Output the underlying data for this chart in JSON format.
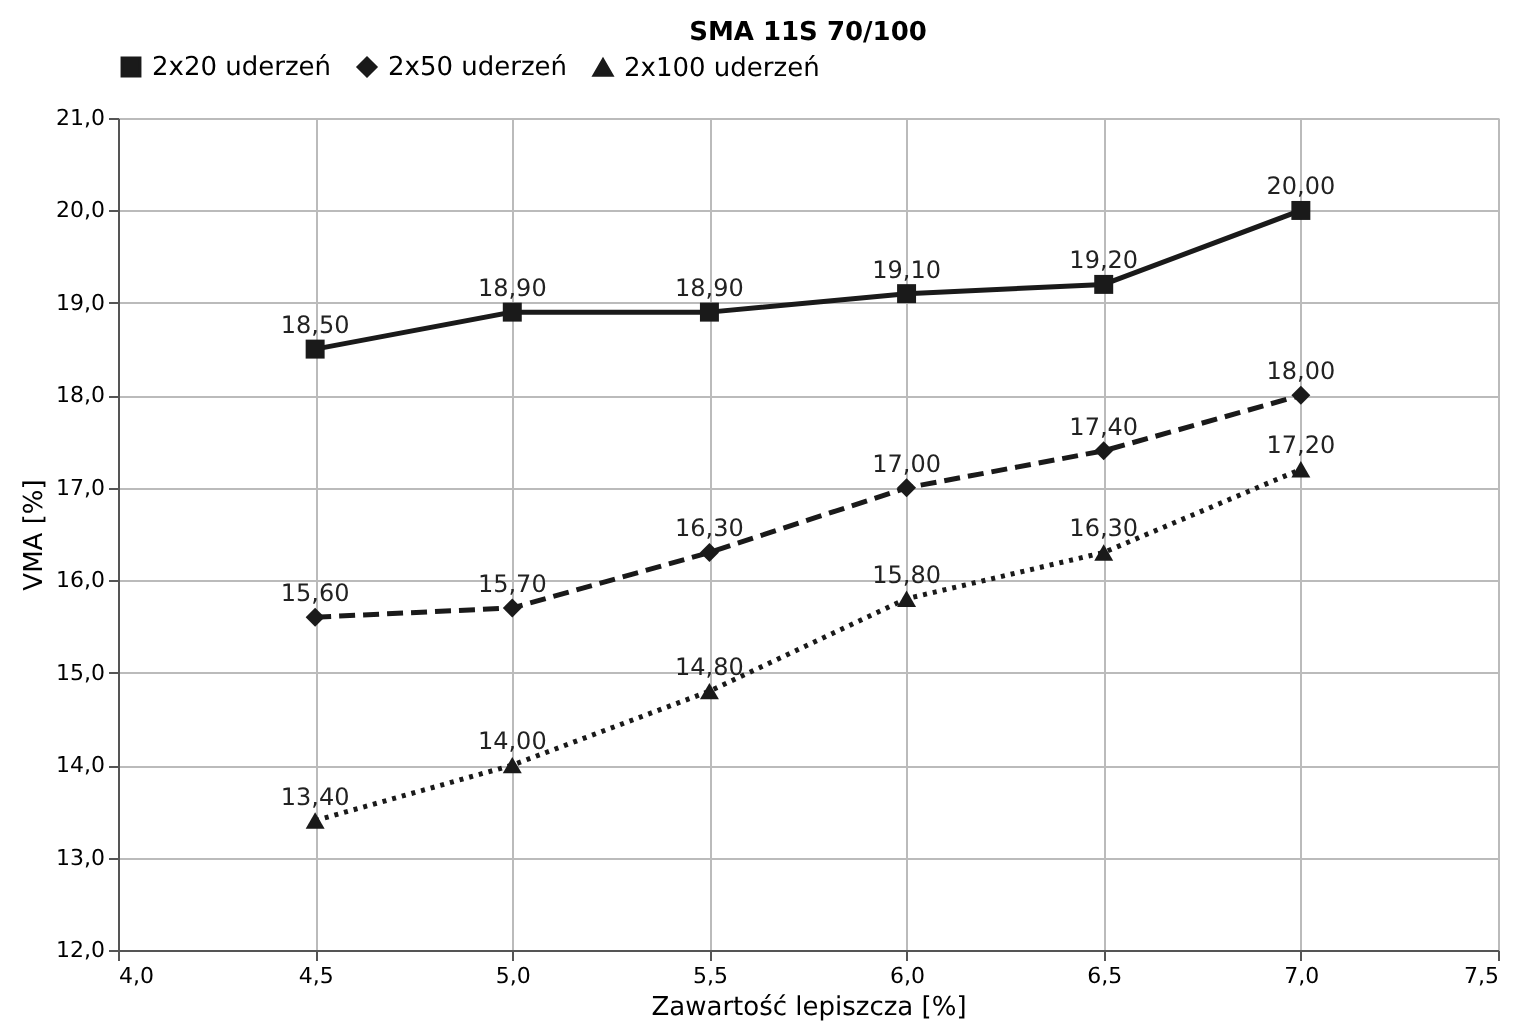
{
  "chart_data": {
    "type": "line",
    "title": "SMA 11S 70/100",
    "xlabel": "Zawartość lepiszcza [%]",
    "ylabel": "VMA [%]",
    "x": [
      4.5,
      5.0,
      5.5,
      6.0,
      6.5,
      7.0
    ],
    "xlim": [
      4.0,
      7.5
    ],
    "xticks": [
      {
        "value": 4.0,
        "label": "4,0"
      },
      {
        "value": 4.5,
        "label": "4,5"
      },
      {
        "value": 5.0,
        "label": "5,0"
      },
      {
        "value": 5.5,
        "label": "5,5"
      },
      {
        "value": 6.0,
        "label": "6,0"
      },
      {
        "value": 6.5,
        "label": "6,5"
      },
      {
        "value": 7.0,
        "label": "7,0"
      },
      {
        "value": 7.5,
        "label": "7,5"
      }
    ],
    "ylim": [
      12.0,
      21.0
    ],
    "yticks": [
      {
        "value": 12.0,
        "label": "12,0"
      },
      {
        "value": 13.0,
        "label": "13,0"
      },
      {
        "value": 14.0,
        "label": "14,0"
      },
      {
        "value": 15.0,
        "label": "15,0"
      },
      {
        "value": 16.0,
        "label": "16,0"
      },
      {
        "value": 17.0,
        "label": "17,0"
      },
      {
        "value": 18.0,
        "label": "18,0"
      },
      {
        "value": 19.0,
        "label": "19,0"
      },
      {
        "value": 20.0,
        "label": "20,0"
      },
      {
        "value": 21.0,
        "label": "21,0"
      }
    ],
    "grid": true,
    "legend": "top",
    "series": [
      {
        "name": "2x20 uderzeń",
        "color": "#1a1a1a",
        "marker": "square",
        "line_style": "solid",
        "values": [
          18.5,
          18.9,
          18.9,
          19.1,
          19.2,
          20.0
        ],
        "value_labels": [
          "18,50",
          "18,90",
          "18,90",
          "19,10",
          "19,20",
          "20,00"
        ]
      },
      {
        "name": "2x50 uderzeń",
        "color": "#1a1a1a",
        "marker": "diamond",
        "line_style": "dashed",
        "values": [
          15.6,
          15.7,
          16.3,
          17.0,
          17.4,
          18.0
        ],
        "value_labels": [
          "15,60",
          "15,70",
          "16,30",
          "17,00",
          "17,40",
          "18,00"
        ]
      },
      {
        "name": "2x100 uderzeń",
        "color": "#1a1a1a",
        "marker": "triangle",
        "line_style": "dotted",
        "values": [
          13.4,
          14.0,
          14.8,
          15.8,
          16.3,
          17.2
        ],
        "value_labels": [
          "13,40",
          "14,00",
          "14,80",
          "15,80",
          "16,30",
          "17,20"
        ]
      }
    ]
  }
}
